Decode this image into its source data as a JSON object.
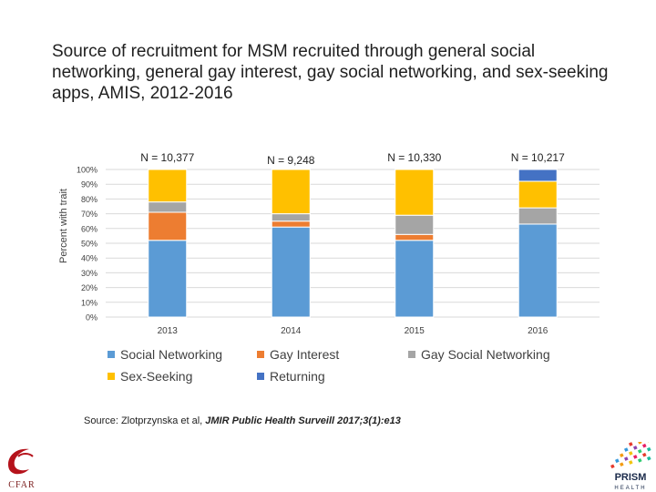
{
  "title": "Source of recruitment for MSM recruited through general social networking, general gay interest, gay social networking, and sex-seeking apps, AMIS, 2012-2016",
  "source": {
    "prefix": "Source: Zlotprzynska et al, ",
    "journal": "JMIR Public Health Surveill 2017;3(1):e13"
  },
  "logos": {
    "left": "CFAR",
    "right": "PRISM HEALTH"
  },
  "chart_data": {
    "type": "bar",
    "stacked": true,
    "percent": true,
    "ylabel": "Percent with trait",
    "xlabel": "",
    "ylim": [
      0,
      100
    ],
    "yticks": [
      "0%",
      "10%",
      "20%",
      "30%",
      "40%",
      "50%",
      "60%",
      "70%",
      "80%",
      "90%",
      "100%"
    ],
    "grid": true,
    "legend": "bottom",
    "categories": [
      "2013",
      "2014",
      "2015",
      "2016"
    ],
    "annotations": [
      "N = 10,377",
      "N = 9,248",
      "N = 10,330",
      "N = 10,217"
    ],
    "series": [
      {
        "name": "Social Networking",
        "color": "#5b9bd5",
        "values": [
          52,
          61,
          52,
          63
        ]
      },
      {
        "name": "Gay Interest",
        "color": "#ed7d31",
        "values": [
          19,
          4,
          4,
          0
        ]
      },
      {
        "name": "Gay Social Networking",
        "color": "#a5a5a5",
        "values": [
          7,
          5,
          13,
          11
        ]
      },
      {
        "name": "Sex-Seeking",
        "color": "#ffc000",
        "values": [
          22,
          30,
          31,
          18
        ]
      },
      {
        "name": "Returning",
        "color": "#4472c4",
        "values": [
          0,
          0,
          0,
          8
        ]
      }
    ]
  }
}
